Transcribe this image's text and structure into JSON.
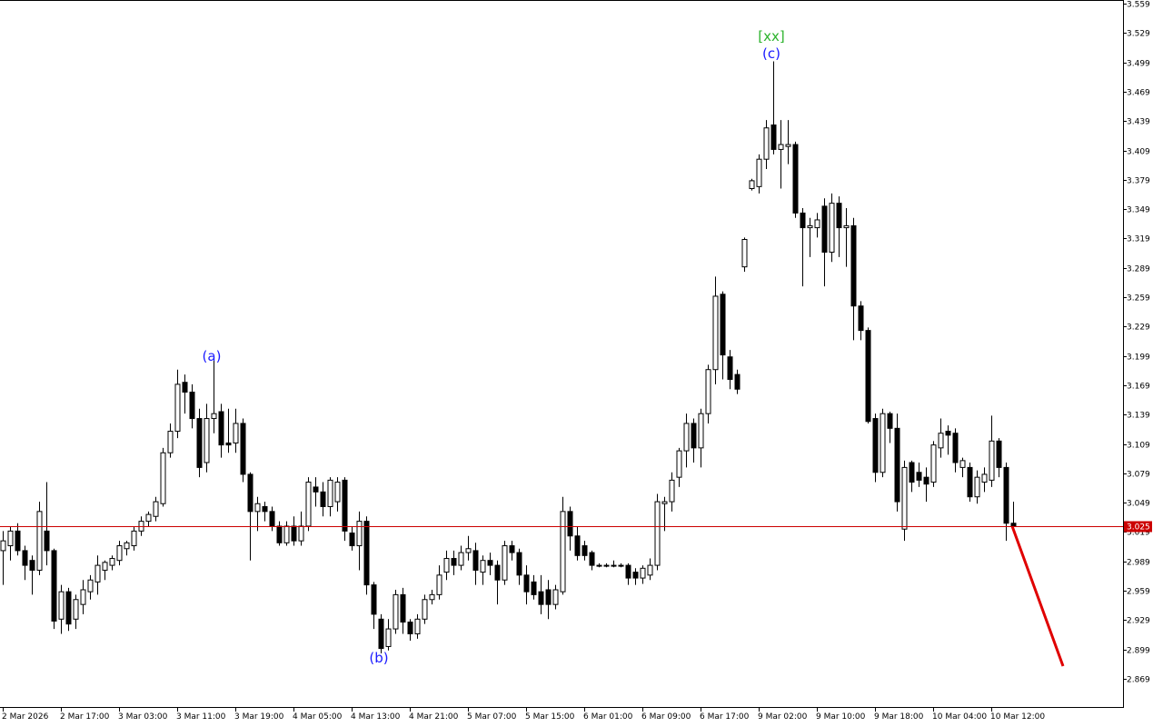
{
  "chart_data": {
    "type": "candlestick",
    "categories": [
      "2 Mar 2026",
      null,
      null,
      null,
      null,
      null,
      null,
      null,
      "2 Mar 17:00",
      null,
      null,
      null,
      null,
      null,
      null,
      null,
      "3 Mar 03:00",
      null,
      null,
      null,
      null,
      null,
      null,
      null,
      "3 Mar 11:00",
      null,
      null,
      null,
      null,
      null,
      null,
      null,
      "3 Mar 19:00",
      null,
      null,
      null,
      null,
      null,
      null,
      null,
      "4 Mar 05:00",
      null,
      null,
      null,
      null,
      null,
      null,
      null,
      "4 Mar 13:00",
      null,
      null,
      null,
      null,
      null,
      null,
      null,
      "4 Mar 21:00",
      null,
      null,
      null,
      null,
      null,
      null,
      null,
      "5 Mar 07:00",
      null,
      null,
      null,
      null,
      null,
      null,
      null,
      "5 Mar 15:00",
      null,
      null,
      null,
      null,
      null,
      null,
      null,
      "6 Mar 01:00",
      null,
      null,
      null,
      null,
      null,
      null,
      null,
      "6 Mar 09:00",
      null,
      null,
      null,
      null,
      null,
      null,
      null,
      "6 Mar 17:00",
      null,
      null,
      null,
      null,
      null,
      null,
      null,
      "9 Mar 02:00",
      null,
      null,
      null,
      null,
      null,
      null,
      null,
      "9 Mar 10:00",
      null,
      null,
      null,
      null,
      null,
      null,
      null,
      "9 Mar 18:00",
      null,
      null,
      null,
      null,
      null,
      null,
      null,
      "10 Mar 04:00",
      null,
      null,
      null,
      null,
      null,
      null,
      null,
      "10 Mar 12:00",
      null,
      null,
      null
    ],
    "open": [
      3.0,
      3.005,
      3.02,
      3.0,
      2.99,
      2.98,
      3.02,
      3.0,
      2.93,
      2.958,
      2.93,
      2.945,
      2.958,
      2.968,
      2.98,
      2.985,
      2.99,
      3.002,
      3.005,
      3.02,
      3.03,
      3.035,
      3.048,
      3.1,
      3.122,
      3.172,
      3.162,
      3.135,
      3.09,
      3.135,
      3.142,
      3.11,
      3.11,
      3.13,
      3.078,
      3.04,
      3.045,
      3.04,
      3.025,
      3.008,
      3.025,
      3.01,
      3.025,
      3.065,
      3.06,
      3.045,
      3.05,
      3.072,
      3.018,
      3.005,
      3.03,
      2.965,
      2.93,
      2.902,
      2.92,
      2.955,
      2.927,
      2.915,
      2.93,
      2.95,
      2.955,
      2.978,
      2.992,
      2.985,
      2.998,
      3.0,
      2.978,
      2.99,
      2.985,
      2.97,
      3.005,
      2.998,
      2.975,
      2.968,
      2.958,
      2.96,
      2.945,
      2.958,
      3.04,
      3.015,
      3.005,
      2.998,
      2.985,
      2.985,
      2.985,
      2.985,
      2.985,
      2.978,
      2.972,
      2.975,
      2.985,
      3.048,
      3.05,
      3.075,
      3.102,
      3.13,
      3.105,
      3.14,
      3.185,
      3.262,
      3.198,
      3.18,
      3.29,
      3.37,
      3.372,
      3.4,
      3.435,
      3.41,
      3.413,
      3.415,
      3.345,
      3.33,
      3.33,
      3.352,
      3.305,
      3.355,
      3.33,
      3.332,
      3.25,
      3.225,
      3.135,
      3.08,
      3.14,
      3.125,
      3.022,
      3.09,
      3.08,
      3.075,
      3.07,
      3.105,
      3.122,
      3.12,
      3.085,
      3.085,
      3.055,
      3.07,
      3.072,
      3.112,
      3.085,
      3.028
    ],
    "high": [
      3.02,
      3.025,
      3.028,
      3.005,
      2.995,
      3.05,
      3.07,
      3.002,
      2.965,
      2.962,
      2.955,
      2.97,
      2.975,
      2.995,
      2.99,
      2.995,
      3.01,
      3.01,
      3.025,
      3.035,
      3.04,
      3.055,
      3.105,
      3.13,
      3.185,
      3.18,
      3.17,
      3.145,
      3.15,
      3.195,
      3.15,
      3.145,
      3.145,
      3.135,
      3.08,
      3.055,
      3.05,
      3.045,
      3.03,
      3.03,
      3.035,
      3.04,
      3.075,
      3.075,
      3.07,
      3.075,
      3.075,
      3.075,
      3.025,
      3.04,
      3.035,
      2.968,
      2.935,
      2.93,
      2.96,
      2.962,
      2.93,
      2.935,
      2.955,
      2.96,
      2.985,
      3.0,
      3.0,
      3.005,
      3.015,
      3.008,
      2.995,
      2.998,
      2.99,
      3.01,
      3.01,
      3.002,
      2.985,
      2.975,
      2.975,
      2.97,
      2.965,
      3.055,
      3.045,
      3.025,
      3.01,
      3.0,
      2.987,
      2.987,
      2.99,
      2.987,
      2.987,
      2.982,
      2.985,
      2.992,
      3.058,
      3.055,
      3.08,
      3.105,
      3.14,
      3.135,
      3.145,
      3.19,
      3.28,
      3.265,
      3.205,
      3.185,
      3.32,
      3.38,
      3.405,
      3.44,
      3.5,
      3.44,
      3.44,
      3.418,
      3.35,
      3.34,
      3.345,
      3.36,
      3.365,
      3.362,
      3.35,
      3.34,
      3.255,
      3.228,
      3.14,
      3.145,
      3.142,
      3.14,
      3.092,
      3.092,
      3.09,
      3.085,
      3.112,
      3.135,
      3.128,
      3.125,
      3.095,
      3.09,
      3.082,
      3.085,
      3.138,
      3.115,
      3.09,
      3.05
    ],
    "low": [
      2.965,
      2.99,
      2.995,
      2.97,
      2.955,
      2.975,
      2.985,
      2.92,
      2.915,
      2.918,
      2.92,
      2.935,
      2.95,
      2.955,
      2.97,
      2.98,
      2.985,
      2.995,
      3.0,
      3.015,
      3.025,
      3.03,
      3.045,
      3.095,
      3.115,
      3.14,
      3.125,
      3.075,
      3.08,
      3.12,
      3.095,
      3.1,
      3.1,
      3.07,
      2.99,
      3.02,
      3.03,
      3.02,
      3.005,
      3.005,
      3.005,
      3.005,
      3.02,
      3.045,
      3.035,
      3.035,
      3.04,
      3.01,
      3.0,
      2.98,
      2.955,
      2.92,
      2.895,
      2.898,
      2.915,
      2.915,
      2.908,
      2.91,
      2.925,
      2.945,
      2.95,
      2.97,
      2.975,
      2.98,
      2.99,
      2.965,
      2.965,
      2.975,
      2.945,
      2.965,
      2.99,
      2.965,
      2.945,
      2.95,
      2.935,
      2.93,
      2.94,
      2.955,
      3.0,
      2.99,
      2.99,
      2.98,
      2.983,
      2.983,
      2.983,
      2.983,
      2.965,
      2.965,
      2.966,
      2.97,
      2.98,
      3.02,
      3.04,
      3.065,
      3.085,
      3.09,
      3.085,
      3.13,
      3.17,
      3.175,
      3.165,
      3.16,
      3.285,
      3.368,
      3.365,
      3.39,
      3.405,
      3.37,
      3.395,
      3.34,
      3.27,
      3.3,
      3.32,
      3.27,
      3.295,
      3.3,
      3.29,
      3.215,
      3.215,
      3.13,
      3.07,
      3.075,
      3.11,
      3.04,
      3.01,
      3.06,
      3.065,
      3.05,
      3.065,
      3.095,
      3.098,
      3.08,
      3.075,
      3.05,
      3.048,
      3.06,
      3.065,
      3.075,
      3.01,
      3.02
    ],
    "close": [
      3.01,
      3.02,
      3.0,
      2.985,
      2.98,
      3.04,
      3.0,
      2.928,
      2.958,
      2.925,
      2.95,
      2.96,
      2.97,
      2.985,
      2.988,
      2.992,
      3.005,
      3.008,
      3.02,
      3.03,
      3.037,
      3.05,
      3.1,
      3.122,
      3.17,
      3.162,
      3.135,
      3.085,
      3.135,
      3.14,
      3.108,
      3.108,
      3.13,
      3.078,
      3.04,
      3.048,
      3.04,
      3.025,
      3.008,
      3.025,
      3.01,
      3.025,
      3.07,
      3.06,
      3.045,
      3.072,
      3.07,
      3.02,
      3.005,
      3.03,
      2.965,
      2.935,
      2.9,
      2.92,
      2.955,
      2.927,
      2.915,
      2.93,
      2.95,
      2.955,
      2.975,
      2.992,
      2.985,
      2.998,
      3.002,
      2.98,
      2.99,
      2.985,
      2.97,
      3.005,
      2.998,
      2.975,
      2.958,
      2.955,
      2.945,
      2.945,
      2.96,
      3.04,
      3.015,
      2.995,
      2.995,
      2.985,
      2.985,
      2.985,
      2.985,
      2.985,
      2.972,
      2.972,
      2.982,
      2.985,
      3.05,
      3.05,
      3.072,
      3.102,
      3.13,
      3.105,
      3.14,
      3.185,
      3.26,
      3.2,
      3.175,
      3.165,
      3.318,
      3.378,
      3.4,
      3.432,
      3.41,
      3.415,
      3.415,
      3.345,
      3.33,
      3.332,
      3.338,
      3.305,
      3.355,
      3.33,
      3.332,
      3.25,
      3.225,
      3.132,
      3.08,
      3.14,
      3.125,
      3.05,
      3.085,
      3.07,
      3.072,
      3.068,
      3.108,
      3.12,
      3.118,
      3.09,
      3.092,
      3.055,
      3.075,
      3.078,
      3.112,
      3.085,
      3.028,
      3.025
    ],
    "ylim": [
      2.8402,
      3.5627
    ],
    "yticks": [
      3.559,
      3.529,
      3.499,
      3.469,
      3.439,
      3.409,
      3.379,
      3.349,
      3.319,
      3.289,
      3.259,
      3.229,
      3.199,
      3.169,
      3.139,
      3.109,
      3.079,
      3.049,
      3.019,
      2.989,
      2.959,
      2.929,
      2.899,
      2.869
    ],
    "current_price": 3.025,
    "current_price_color": "#cc0000",
    "forecast": {
      "color": "#e00000",
      "x": [
        139,
        146
      ],
      "values": [
        3.025,
        2.882
      ]
    },
    "annotations": [
      {
        "text": "(a)",
        "color": "#1a1aff"
      },
      {
        "text": "(b)",
        "color": "#1a1aff"
      },
      {
        "text": "(c)",
        "color": "#1a1aff"
      },
      {
        "text": "[xx]",
        "color": "#2db32d"
      }
    ]
  }
}
